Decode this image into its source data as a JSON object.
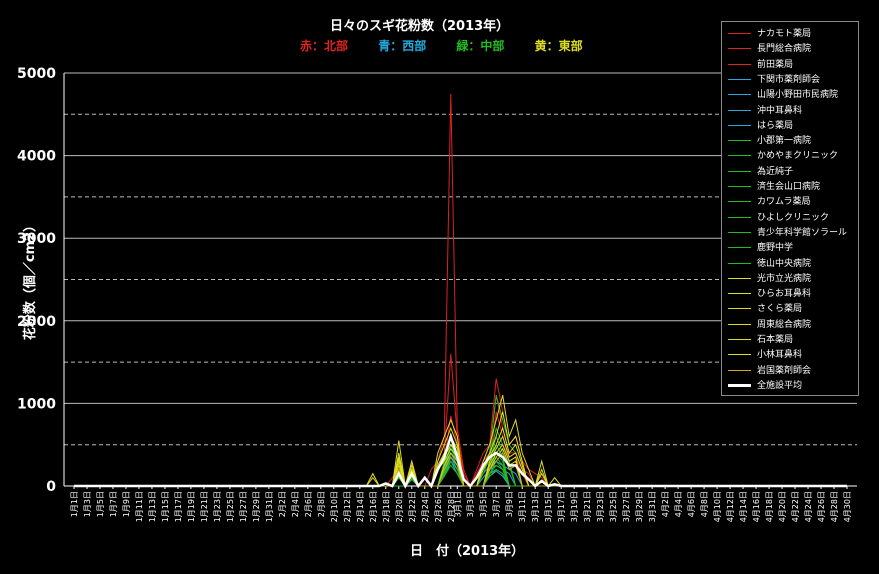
{
  "chart_data": {
    "type": "line",
    "title": "日々のスギ花粉数（2013年）",
    "region_legend": [
      {
        "label": "赤：北部",
        "color": "#dd2222"
      },
      {
        "label": "青：西部",
        "color": "#22aadd"
      },
      {
        "label": "緑：中部",
        "color": "#22bb22"
      },
      {
        "label": "黄：東部",
        "color": "#dddd22"
      }
    ],
    "xlabel": "日　付（2013年）",
    "ylabel": "花粉数（個／cm2）",
    "ylim": [
      0,
      5000
    ],
    "y_ticks": [
      "0",
      "1000",
      "2000",
      "3000",
      "4000",
      "5000"
    ],
    "grid": "solid at 1000 intervals, dashed at 500 intervals",
    "legend_position": "top-right",
    "x_tick_labels": [
      "1月1日",
      "1月3日",
      "1月5日",
      "1月7日",
      "1月9日",
      "1月11日",
      "1月13日",
      "1月15日",
      "1月17日",
      "1月19日",
      "1月21日",
      "1月23日",
      "1月25日",
      "1月27日",
      "1月29日",
      "1月31日",
      "2月2日",
      "2月4日",
      "2月6日",
      "2月8日",
      "2月10日",
      "2月12日",
      "2月14日",
      "2月16日",
      "2月18日",
      "2月20日",
      "2月22日",
      "2月24日",
      "2月26日",
      "2月28日",
      "3月1日",
      "3月3日",
      "3月5日",
      "3月7日",
      "3月9日",
      "3月11日",
      "3月13日",
      "3月15日",
      "3月17日",
      "3月19日",
      "3月21日",
      "3月23日",
      "3月25日",
      "3月27日",
      "3月29日",
      "3月31日",
      "4月2日",
      "4月4日",
      "4月6日",
      "4月8日",
      "4月10日",
      "4月12日",
      "4月14日",
      "4月16日",
      "4月18日",
      "4月20日",
      "4月22日",
      "4月24日",
      "4月26日",
      "4月28日",
      "4月30日"
    ],
    "series": [
      {
        "name": "ナカモト薬局",
        "color": "#dd2222",
        "values": {
          "2月19日": 100,
          "2月20日": 200,
          "2月22日": 300,
          "2月25日": 200,
          "2月26日": 300,
          "2月27日": 600,
          "2月28日": 4750,
          "3月1日": 700,
          "3月2日": 200,
          "3月4日": 200,
          "3月5日": 400,
          "3月6日": 500,
          "3月7日": 1300,
          "3月8日": 900,
          "3月9日": 500,
          "3月10日": 600,
          "3月11日": 300,
          "3月12日": 200,
          "3月13日": 150,
          "3月14日": 100
        }
      },
      {
        "name": "長門総合病院",
        "color": "#dd2222",
        "values": {
          "2月20日": 150,
          "2月22日": 200,
          "2月26日": 200,
          "2月27日": 400,
          "2月28日": 1600,
          "3月1日": 600,
          "3月2日": 150,
          "3月4日": 150,
          "3月5日": 300,
          "3月6日": 400,
          "3月7日": 1100,
          "3月8日": 700,
          "3月9日": 400,
          "3月10日": 400,
          "3月11日": 200,
          "3月12日": 150
        }
      },
      {
        "name": "前田薬局",
        "color": "#dd2222",
        "values": {
          "2月20日": 100,
          "2月22日": 150,
          "2月26日": 200,
          "2月27日": 300,
          "2月28日": 850,
          "3月1日": 500,
          "3月2日": 100,
          "3月5日": 200,
          "3月6日": 300,
          "3月7日": 900,
          "3月8日": 600,
          "3月9日": 300,
          "3月10日": 350,
          "3月11日": 150
        }
      },
      {
        "name": "下関市薬剤師会",
        "color": "#22aadd",
        "values": {
          "2月22日": 100,
          "2月27日": 200,
          "2月28日": 500,
          "3月1日": 300,
          "3月5日": 150,
          "3月6日": 250,
          "3月7日": 300,
          "3月8日": 250,
          "3月9日": 200,
          "3月10日": 150
        }
      },
      {
        "name": "山陽小野田市民病院",
        "color": "#22aadd",
        "values": {
          "2月22日": 100,
          "2月27日": 150,
          "2月28日": 400,
          "3月1日": 250,
          "3月5日": 100,
          "3月6日": 200,
          "3月7日": 250,
          "3月8日": 200,
          "3月9日": 150
        }
      },
      {
        "name": "沖中耳鼻科",
        "color": "#22aadd",
        "values": {
          "2月22日": 80,
          "2月27日": 150,
          "2月28日": 350,
          "3月1日": 200,
          "3月6日": 150,
          "3月7日": 200,
          "3月8日": 150
        }
      },
      {
        "name": "はら薬局",
        "color": "#22aadd",
        "values": {
          "2月22日": 80,
          "2月27日": 120,
          "2月28日": 300,
          "3月1日": 150,
          "3月6日": 120,
          "3月7日": 180,
          "3月8日": 120
        }
      },
      {
        "name": "小郡第一病院",
        "color": "#22bb22",
        "values": {
          "2月20日": 150,
          "2月22日": 200,
          "2月27日": 300,
          "2月28日": 600,
          "3月1日": 400,
          "3月5日": 200,
          "3月6日": 400,
          "3月7日": 1100,
          "3月8日": 800,
          "3月9日": 500,
          "3月10日": 400,
          "3月11日": 200
        }
      },
      {
        "name": "かめやまクリニック",
        "color": "#22bb22",
        "values": {
          "2月20日": 120,
          "2月22日": 180,
          "2月27日": 250,
          "2月28日": 500,
          "3月1日": 350,
          "3月5日": 150,
          "3月6日": 350,
          "3月7日": 700,
          "3月8日": 500,
          "3月9日": 300
        }
      },
      {
        "name": "為近純子",
        "color": "#22bb22",
        "values": {
          "2月20日": 100,
          "2月22日": 150,
          "2月27日": 250,
          "2月28日": 450,
          "3月1日": 300,
          "3月6日": 300,
          "3月7日": 600,
          "3月8日": 400,
          "3月9日": 250
        }
      },
      {
        "name": "済生会山口病院",
        "color": "#22bb22",
        "values": {
          "2月20日": 100,
          "2月22日": 150,
          "2月27日": 200,
          "2月28日": 400,
          "3月1日": 300,
          "3月6日": 250,
          "3月7日": 500,
          "3月8日": 350
        }
      },
      {
        "name": "カワムラ薬局",
        "color": "#22bb22",
        "values": {
          "2月22日": 120,
          "2月27日": 200,
          "2月28日": 350,
          "3月1日": 250,
          "3月6日": 200,
          "3月7日": 400,
          "3月8日": 300
        }
      },
      {
        "name": "ひよしクリニック",
        "color": "#22bb22",
        "values": {
          "2月22日": 100,
          "2月27日": 180,
          "2月28日": 300,
          "3月1日": 200,
          "3月6日": 200,
          "3月7日": 350,
          "3月8日": 250
        }
      },
      {
        "name": "青少年科学館ソラール",
        "color": "#22bb22",
        "values": {
          "2月22日": 100,
          "2月27日": 150,
          "2月28日": 300,
          "3月1日": 200,
          "3月6日": 150,
          "3月7日": 300,
          "3月8日": 200
        }
      },
      {
        "name": "鹿野中学",
        "color": "#22bb22",
        "values": {
          "2月22日": 80,
          "2月27日": 150,
          "2月28日": 250,
          "3月1日": 150,
          "3月6日": 150,
          "3月7日": 250,
          "3月8日": 200
        }
      },
      {
        "name": "徳山中央病院",
        "color": "#22bb22",
        "values": {
          "2月22日": 80,
          "2月27日": 120,
          "2月28日": 250,
          "3月1日": 150,
          "3月6日": 120,
          "3月7日": 200,
          "3月8日": 150
        }
      },
      {
        "name": "光市立光病院",
        "color": "#dddd22",
        "values": {
          "2月16日": 150,
          "2月20日": 550,
          "2月22日": 300,
          "2月26日": 400,
          "2月27日": 600,
          "2月28日": 800,
          "3月1日": 600,
          "3月5日": 300,
          "3月6日": 500,
          "3月7日": 800,
          "3月8日": 1100,
          "3月9日": 600,
          "3月10日": 800,
          "3月11日": 400,
          "3月12日": 200,
          "3月14日": 300,
          "3月16日": 100
        }
      },
      {
        "name": "ひらお耳鼻科",
        "color": "#dddd22",
        "values": {
          "2月16日": 100,
          "2月20日": 400,
          "2月22日": 250,
          "2月26日": 300,
          "2月27日": 500,
          "2月28日": 700,
          "3月1日": 500,
          "3月5日": 250,
          "3月6日": 400,
          "3月7日": 600,
          "3月8日": 900,
          "3月9日": 500,
          "3月10日": 600,
          "3月11日": 300,
          "3月14日": 200
        }
      },
      {
        "name": "さくら薬局",
        "color": "#dddd22",
        "values": {
          "2月20日": 350,
          "2月22日": 200,
          "2月26日": 250,
          "2月27日": 400,
          "2月28日": 600,
          "3月1日": 450,
          "3月5日": 200,
          "3月6日": 350,
          "3月7日": 500,
          "3月8日": 700,
          "3月9日": 400,
          "3月10日": 500,
          "3月11日": 250,
          "3月14日": 150
        }
      },
      {
        "name": "周東総合病院",
        "color": "#dddd22",
        "values": {
          "2月20日": 300,
          "2月22日": 200,
          "2月26日": 200,
          "2月27日": 350,
          "2月28日": 500,
          "3月1日": 400,
          "3月6日": 300,
          "3月7日": 450,
          "3月8日": 600,
          "3月9日": 350,
          "3月10日": 400,
          "3月11日": 200
        }
      },
      {
        "name": "石本薬局",
        "color": "#dddd22",
        "values": {
          "2月20日": 250,
          "2月22日": 150,
          "2月26日": 200,
          "2月27日": 300,
          "2月28日": 450,
          "3月1日": 350,
          "3月6日": 250,
          "3月7日": 400,
          "3月8日": 500,
          "3月9日": 300,
          "3月10日": 350
        }
      },
      {
        "name": "小林耳鼻科",
        "color": "#dddd22",
        "values": {
          "2月20日": 200,
          "2月22日": 150,
          "2月27日": 250,
          "2月28日": 400,
          "3月1日": 300,
          "3月6日": 200,
          "3月7日": 350,
          "3月8日": 450,
          "3月9日": 250,
          "3月10日": 300
        }
      },
      {
        "name": "岩国薬剤師会",
        "color": "#ccaa22",
        "values": {
          "2月20日": 200,
          "2月22日": 120,
          "2月27日": 200,
          "2月28日": 350,
          "3月1日": 250,
          "3月6日": 200,
          "3月7日": 300,
          "3月8日": 400,
          "3月9日": 200,
          "3月10日": 250
        }
      },
      {
        "name": "全施設平均",
        "color": "#ffffff",
        "thick": true,
        "values": {
          "2月18日": 30,
          "2月20日": 150,
          "2月22日": 150,
          "2月24日": 100,
          "2月26日": 200,
          "2月27日": 350,
          "2月28日": 600,
          "3月1日": 350,
          "3月2日": 80,
          "3月4日": 100,
          "3月5日": 250,
          "3月6日": 350,
          "3月7日": 400,
          "3月8日": 350,
          "3月9日": 250,
          "3月10日": 250,
          "3月11日": 150,
          "3月12日": 80,
          "3月14日": 60,
          "3月16日": 20
        }
      }
    ]
  }
}
